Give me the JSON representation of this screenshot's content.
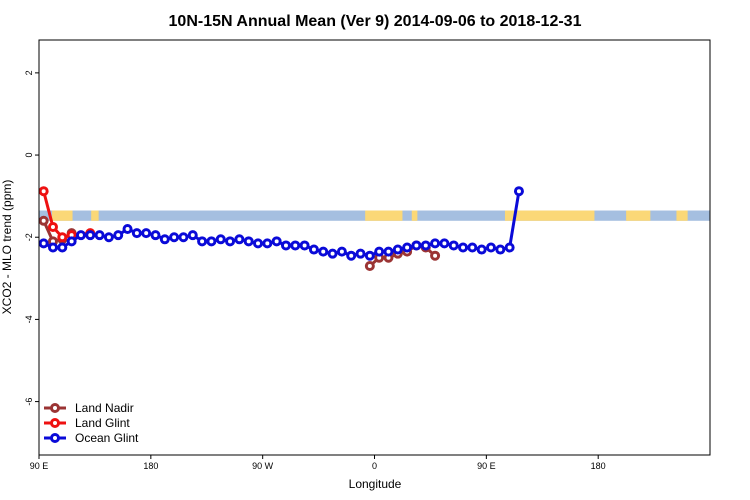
{
  "chart_data": {
    "type": "line",
    "title": "10N-15N Annual Mean (Ver 9)   2014-09-06 to 2018-12-31",
    "xlabel": "Longitude",
    "ylabel": "XCO2 - MLO trend (ppm)",
    "xlim": [
      90,
      450
    ],
    "ylim": [
      -7.3,
      2.8
    ],
    "x_ticks": [
      {
        "value": 90,
        "label": "90 E"
      },
      {
        "value": 180,
        "label": "180"
      },
      {
        "value": 270,
        "label": "90 W"
      },
      {
        "value": 360,
        "label": "0"
      },
      {
        "value": 450,
        "label": "90 E"
      },
      {
        "value": 540,
        "label": "180"
      }
    ],
    "y_ticks": [
      {
        "value": 2,
        "label": "2"
      },
      {
        "value": 0,
        "label": "0"
      },
      {
        "value": -2,
        "label": "-2"
      },
      {
        "value": -4,
        "label": "-4"
      },
      {
        "value": -6,
        "label": "-6"
      }
    ],
    "x_axis_scale": 0.6667,
    "legend_position": "bottom-left",
    "land_mask_band": {
      "y_top": -1.35,
      "y_bottom": -1.6,
      "ocean_color": "#a5bfe0",
      "land_color": "#fbd877"
    },
    "series": [
      {
        "name": "Land Nadir",
        "color": "#9b3434",
        "x": [
          92.5,
          97.5,
          102.5,
          107.5
        ],
        "y": [
          -1.6,
          -2.1,
          -2.05,
          -1.9
        ],
        "x_part2": [
          267.5,
          272.5,
          277.5,
          282.5,
          287.5,
          292.5,
          297.5,
          302.5
        ],
        "y_part2": [
          -2.7,
          -2.5,
          -2.5,
          -2.4,
          -2.35,
          -2.2,
          -2.25,
          -2.45
        ]
      },
      {
        "name": "Land Glint",
        "color": "#ee1111",
        "x": [
          92.5,
          97.5,
          102.5,
          107.5,
          117.5
        ],
        "y": [
          -0.88,
          -1.75,
          -2.0,
          -1.95,
          -1.9
        ]
      },
      {
        "name": "Ocean Glint",
        "color": "#0a0ad8",
        "x": [
          92.5,
          97.5,
          102.5,
          107.5,
          112.5,
          117.5,
          122.5,
          127.5,
          132.5,
          137.5,
          142.5,
          147.5,
          152.5,
          157.5,
          162.5,
          167.5,
          172.5,
          177.5,
          182.5,
          187.5,
          192.5,
          197.5,
          202.5,
          207.5,
          212.5,
          217.5,
          222.5,
          227.5,
          232.5,
          237.5,
          242.5,
          247.5,
          252.5,
          257.5,
          262.5,
          267.5,
          272.5,
          277.5,
          282.5,
          287.5,
          292.5,
          297.5,
          302.5,
          307.5,
          312.5,
          317.5,
          322.5,
          327.5,
          332.5,
          337.5,
          342.5,
          347.5
        ],
        "y": [
          -2.15,
          -2.25,
          -2.25,
          -2.1,
          -1.95,
          -1.95,
          -1.95,
          -2.0,
          -1.95,
          -1.8,
          -1.9,
          -1.9,
          -1.95,
          -2.05,
          -2.0,
          -2.0,
          -1.95,
          -2.1,
          -2.1,
          -2.05,
          -2.1,
          -2.05,
          -2.1,
          -2.15,
          -2.15,
          -2.1,
          -2.2,
          -2.2,
          -2.2,
          -2.3,
          -2.35,
          -2.4,
          -2.35,
          -2.45,
          -2.4,
          -2.45,
          -2.35,
          -2.35,
          -2.3,
          -2.25,
          -2.2,
          -2.2,
          -2.15,
          -2.15,
          -2.2,
          -2.25,
          -2.25,
          -2.3,
          -2.25,
          -2.3,
          -2.25,
          -0.88
        ]
      }
    ]
  }
}
